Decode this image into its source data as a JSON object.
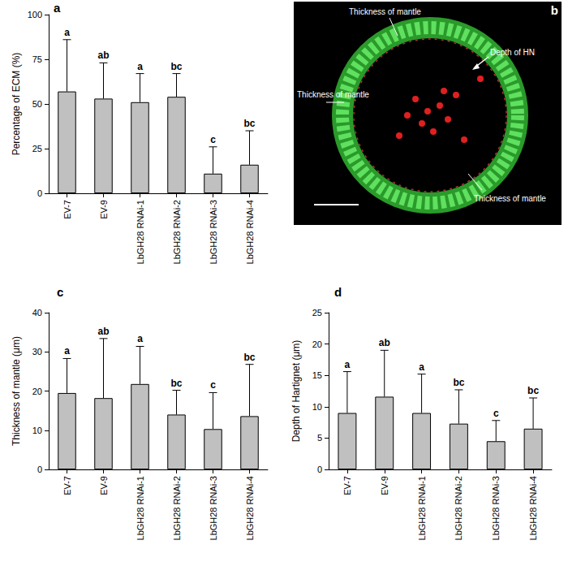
{
  "chart_data": [
    {
      "panel": "a",
      "type": "bar",
      "ylabel": "Percentage of ECM (%)",
      "categories": [
        "EV-7",
        "EV-9",
        "LbGH28 RNAi-1",
        "LbGH28 RNAi-2",
        "LbGH28 RNAi-3",
        "LbGH28 RNAi-4"
      ],
      "values": [
        57,
        53,
        51,
        54,
        11,
        16
      ],
      "errors": [
        29,
        20,
        16,
        13,
        15,
        19
      ],
      "letters": [
        "a",
        "ab",
        "a",
        "bc",
        "c",
        "bc"
      ],
      "color": "#c0c0c0",
      "ylim": [
        0,
        100
      ],
      "yticks": [
        0,
        25,
        50,
        75,
        100
      ],
      "grid": false
    },
    {
      "panel": "b",
      "type": "image",
      "annotations": [
        "Thickness of mantle",
        "Thickness of mantle",
        "Depth of HN",
        "Thickness of mantle"
      ]
    },
    {
      "panel": "c",
      "type": "bar",
      "ylabel": "Thickness of mantle (μm)",
      "categories": [
        "EV-7",
        "EV-9",
        "LbGH28 RNAi-1",
        "LbGH28 RNAi-2",
        "LbGH28 RNAi-3",
        "LbGH28 RNAi-4"
      ],
      "values": [
        19.5,
        18.2,
        21.8,
        14,
        10.3,
        13.6
      ],
      "errors": [
        8.8,
        15.2,
        9.6,
        6.2,
        9.3,
        13.2
      ],
      "letters": [
        "a",
        "ab",
        "a",
        "bc",
        "c",
        "bc"
      ],
      "color": "#c0c0c0",
      "ylim": [
        0,
        40
      ],
      "yticks": [
        0,
        10,
        20,
        30,
        40
      ],
      "grid": false
    },
    {
      "panel": "d",
      "type": "bar",
      "ylabel": "Depth of Hartignet (μm)",
      "categories": [
        "EV-7",
        "EV-9",
        "LbGH28 RNAi-1",
        "LbGH28 RNAi-2",
        "LbGH28 RNAi-3",
        "LbGH28 RNAi-4"
      ],
      "values": [
        9.0,
        11.6,
        9.0,
        7.3,
        4.5,
        6.5
      ],
      "errors": [
        6.6,
        7.4,
        6.2,
        5.4,
        3.3,
        4.9
      ],
      "letters": [
        "a",
        "ab",
        "a",
        "bc",
        "c",
        "bc"
      ],
      "color": "#c0c0c0",
      "ylim": [
        0,
        25
      ],
      "yticks": [
        0,
        5,
        10,
        15,
        20,
        25
      ],
      "grid": false
    }
  ]
}
